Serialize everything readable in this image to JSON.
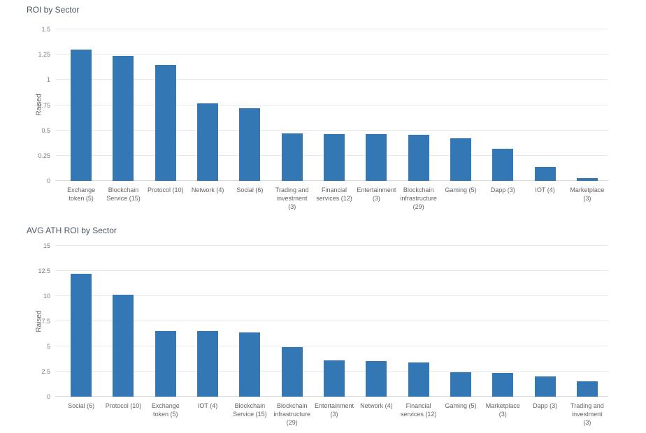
{
  "colors": {
    "bar": "#3377b5",
    "gridline": "#e8e8e8",
    "axis_line": "#dadada",
    "title_text": "#4a5565",
    "tick_text": "#7a7a7a",
    "label_text": "#636363"
  },
  "chart_data": [
    {
      "type": "bar",
      "title": "ROI by Sector",
      "xlabel": "",
      "ylabel": "Raised",
      "ylim": [
        0,
        1.5
      ],
      "yticks": [
        "0",
        "0.25",
        "0.5",
        "0.75",
        "1",
        "1.25",
        "1.5"
      ],
      "grid": true,
      "legend": "none",
      "categories": [
        "Exchange token (5)",
        "Blockchain Service (15)",
        "Protocol (10)",
        "Network (4)",
        "Social (6)",
        "Trading and investment (3)",
        "Financial services (12)",
        "Entertainment (3)",
        "Blockchain infrastructure (29)",
        "Gaming (5)",
        "Dapp (3)",
        "IOT (4)",
        "Marketplace (3)"
      ],
      "values": [
        1.3,
        1.24,
        1.15,
        0.77,
        0.72,
        0.47,
        0.465,
        0.465,
        0.455,
        0.425,
        0.315,
        0.14,
        0.03
      ]
    },
    {
      "type": "bar",
      "title": "AVG ATH ROI by Sector",
      "xlabel": "",
      "ylabel": "Raised",
      "ylim": [
        0,
        15
      ],
      "yticks": [
        "0",
        "2.5",
        "5",
        "7.5",
        "10",
        "12.5",
        "15"
      ],
      "grid": true,
      "legend": "none",
      "categories": [
        "Social (6)",
        "Protocol (10)",
        "Exchange token (5)",
        "IOT (4)",
        "Blockchain Service (15)",
        "Blockchain infrastructure (29)",
        "Entertainment (3)",
        "Network (4)",
        "Financial services (12)",
        "Gaming (5)",
        "Marketplace (3)",
        "Dapp (3)",
        "Trading and investment (3)"
      ],
      "values": [
        12.2,
        10.15,
        6.55,
        6.5,
        6.4,
        4.9,
        3.6,
        3.55,
        3.4,
        2.45,
        2.35,
        2.05,
        1.5
      ]
    }
  ]
}
